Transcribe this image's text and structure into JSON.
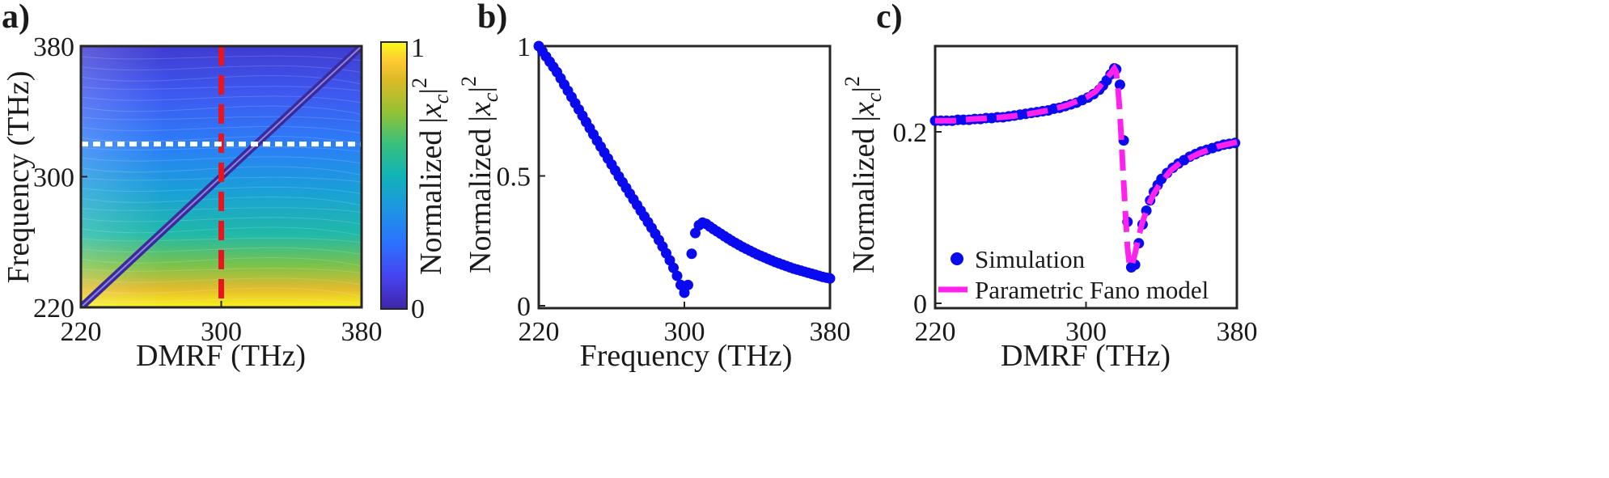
{
  "panel_labels": [
    "a)",
    "b)",
    "c)"
  ],
  "colors": {
    "sim_marker": "#0a0af0",
    "fano_line": "#ff22ee",
    "vertical_marker": "#e8141e",
    "horizontal_marker": "#ffffff",
    "parula": [
      "#3e26a8",
      "#4743f1",
      "#2b73fe",
      "#1d97e0",
      "#11b3b6",
      "#39c07c",
      "#95c234",
      "#ddb926",
      "#feca35",
      "#f9fb15"
    ]
  },
  "chart_data": [
    {
      "type": "heatmap",
      "panel": "a)",
      "xlabel": "DMRF (THz)",
      "ylabel": "Frequency (THz)",
      "xlim": [
        220,
        380
      ],
      "ylim": [
        220,
        380
      ],
      "xticks": [
        "220",
        "300",
        "380"
      ],
      "yticks": [
        "220",
        "300",
        "380"
      ],
      "colorbar": {
        "label": "Normalized |x_c|^2",
        "ticks": [
          "0",
          "1"
        ],
        "range": [
          0,
          1
        ],
        "colormap": "parula"
      },
      "resonance_line": {
        "from": [
          220,
          220
        ],
        "to": [
          380,
          380
        ]
      },
      "markers": [
        {
          "orientation": "vertical",
          "style": "dashed",
          "color": "red",
          "x": 300
        },
        {
          "orientation": "horizontal",
          "style": "dotted",
          "color": "white",
          "y": 320
        }
      ]
    },
    {
      "type": "scatter",
      "panel": "b)",
      "xlabel": "Frequency (THz)",
      "ylabel": "Normalized |x_c|^2",
      "xlim": [
        220,
        380
      ],
      "ylim": [
        0,
        1
      ],
      "xticks": [
        "220",
        "300",
        "380"
      ],
      "yticks": [
        "0",
        "0.5",
        "1"
      ],
      "series": [
        {
          "x": [
            220,
            222,
            224,
            226,
            228,
            230,
            232,
            234,
            236,
            238,
            240,
            242,
            244,
            246,
            248,
            250,
            252,
            254,
            256,
            258,
            260,
            262,
            264,
            266,
            268,
            270,
            272,
            274,
            276,
            278,
            280,
            282,
            284,
            286,
            288,
            290,
            292,
            294,
            296,
            298,
            300,
            302,
            304,
            306,
            308,
            310,
            312,
            314,
            316,
            318,
            320,
            322,
            324,
            326,
            328,
            330,
            332,
            334,
            336,
            338,
            340,
            342,
            344,
            346,
            348,
            350,
            352,
            354,
            356,
            358,
            360,
            362,
            364,
            366,
            368,
            370,
            372,
            374,
            376,
            378,
            380
          ],
          "values": [
            1.0,
            0.98,
            0.96,
            0.94,
            0.92,
            0.9,
            0.876,
            0.852,
            0.828,
            0.804,
            0.78,
            0.756,
            0.732,
            0.708,
            0.684,
            0.66,
            0.636,
            0.613,
            0.59,
            0.567,
            0.544,
            0.521,
            0.498,
            0.476,
            0.454,
            0.432,
            0.41,
            0.388,
            0.366,
            0.344,
            0.322,
            0.3,
            0.277,
            0.253,
            0.228,
            0.202,
            0.175,
            0.146,
            0.115,
            0.08,
            0.05,
            0.08,
            0.2,
            0.28,
            0.31,
            0.32,
            0.315,
            0.305,
            0.295,
            0.286,
            0.277,
            0.268,
            0.259,
            0.25,
            0.242,
            0.234,
            0.226,
            0.219,
            0.212,
            0.205,
            0.198,
            0.192,
            0.186,
            0.18,
            0.174,
            0.168,
            0.163,
            0.158,
            0.153,
            0.148,
            0.143,
            0.139,
            0.135,
            0.131,
            0.127,
            0.123,
            0.119,
            0.115,
            0.111,
            0.108,
            0.105
          ]
        }
      ]
    },
    {
      "type": "line",
      "panel": "c)",
      "xlabel": "DMRF (THz)",
      "ylabel": "Normalized |x_c|^2",
      "xlim": [
        220,
        380
      ],
      "ylim": [
        0,
        0.3
      ],
      "xticks": [
        "220",
        "300",
        "380"
      ],
      "yticks": [
        "0",
        "0.2"
      ],
      "legend": {
        "position": "bottom-left"
      },
      "series": [
        {
          "name": "Simulation",
          "style": "markers",
          "x": [
            220,
            223,
            226,
            229,
            232,
            235,
            238,
            241,
            244,
            247,
            250,
            253,
            256,
            259,
            262,
            265,
            268,
            271,
            274,
            277,
            280,
            283,
            286,
            289,
            292,
            295,
            298,
            301,
            304,
            307,
            309,
            311,
            313,
            315,
            316,
            318,
            320,
            322,
            324,
            326,
            328,
            330,
            332,
            334,
            336,
            338,
            340,
            343,
            346,
            349,
            352,
            355,
            358,
            361,
            364,
            367,
            370,
            373,
            376,
            379
          ],
          "values": [
            0.213,
            0.213,
            0.213,
            0.213,
            0.214,
            0.214,
            0.214,
            0.215,
            0.215,
            0.216,
            0.216,
            0.217,
            0.217,
            0.218,
            0.219,
            0.22,
            0.221,
            0.222,
            0.223,
            0.224,
            0.225,
            0.227,
            0.228,
            0.23,
            0.232,
            0.234,
            0.237,
            0.24,
            0.244,
            0.249,
            0.254,
            0.26,
            0.267,
            0.274,
            0.273,
            0.255,
            0.19,
            0.095,
            0.042,
            0.045,
            0.07,
            0.092,
            0.108,
            0.12,
            0.13,
            0.138,
            0.145,
            0.152,
            0.158,
            0.163,
            0.167,
            0.171,
            0.174,
            0.177,
            0.179,
            0.181,
            0.183,
            0.185,
            0.186,
            0.187
          ]
        },
        {
          "name": "Parametric Fano model",
          "style": "dashed-line",
          "x": [
            220,
            230,
            240,
            250,
            260,
            270,
            280,
            290,
            300,
            305,
            310,
            313,
            315,
            316,
            317,
            318,
            319,
            320,
            321,
            322,
            323,
            324,
            326,
            328,
            330,
            333,
            336,
            340,
            345,
            350,
            360,
            370,
            380
          ],
          "values": [
            0.213,
            0.213,
            0.215,
            0.216,
            0.218,
            0.221,
            0.225,
            0.231,
            0.24,
            0.247,
            0.26,
            0.268,
            0.274,
            0.27,
            0.25,
            0.22,
            0.18,
            0.14,
            0.1,
            0.065,
            0.046,
            0.042,
            0.058,
            0.079,
            0.095,
            0.114,
            0.128,
            0.142,
            0.155,
            0.164,
            0.175,
            0.183,
            0.188
          ]
        }
      ]
    }
  ]
}
